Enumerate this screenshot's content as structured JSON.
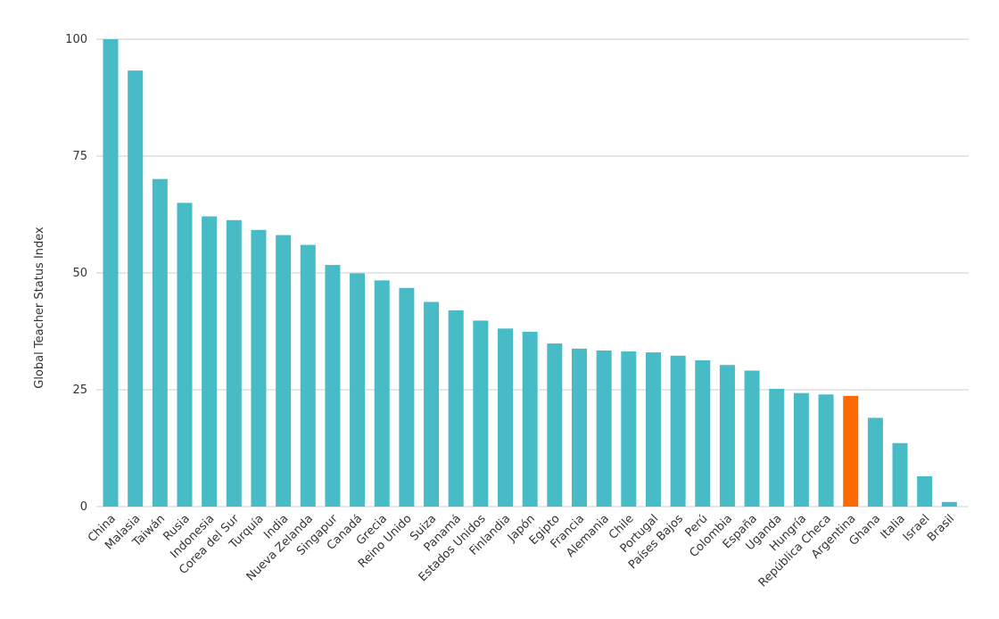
{
  "chart_data": {
    "type": "bar",
    "title": "",
    "xlabel": "",
    "ylabel": "Global Teacher Status Index",
    "ylim": [
      0,
      100
    ],
    "yticks": [
      0,
      25,
      50,
      75,
      100
    ],
    "grid": true,
    "colors": {
      "default": "#47bcc6",
      "highlight": "#ff6a00"
    },
    "highlight_category": "Argentina",
    "categories": [
      "China",
      "Malasia",
      "Taiwán",
      "Rusia",
      "Indonesia",
      "Corea del Sur",
      "Turquía",
      "India",
      "Nueva Zelanda",
      "Singapur",
      "Canadá",
      "Grecia",
      "Reino Unido",
      "Suiza",
      "Panamá",
      "Estados Unidos",
      "Finlandia",
      "Japón",
      "Egipto",
      "Francia",
      "Alemania",
      "Chile",
      "Portugal",
      "Países Bajos",
      "Perú",
      "Colombia",
      "España",
      "Uganda",
      "Hungría",
      "República Checa",
      "Argentina",
      "Ghana",
      "Italia",
      "Israel",
      "Brasil"
    ],
    "values": [
      100,
      93.3,
      70.1,
      65,
      62.1,
      61.3,
      59.2,
      58.1,
      56,
      51.7,
      49.9,
      48.4,
      46.8,
      43.8,
      42,
      39.8,
      38.1,
      37.4,
      34.9,
      33.8,
      33.4,
      33.2,
      33,
      32.3,
      31.3,
      30.3,
      29.1,
      25.2,
      24.3,
      24,
      23.7,
      19,
      13.6,
      6.5,
      1
    ]
  }
}
